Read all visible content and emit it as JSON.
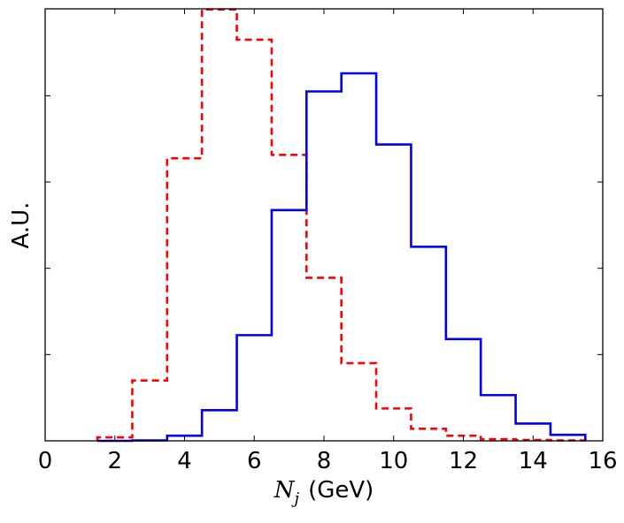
{
  "chart_data": {
    "type": "step",
    "title": "",
    "xlabel": {
      "symbol": "N",
      "subscript": "j",
      "unit": "(GeV)"
    },
    "ylabel": "A.U.",
    "xlim": [
      0,
      16
    ],
    "ylim": [
      0,
      1
    ],
    "xticks": [
      0,
      2,
      4,
      6,
      8,
      10,
      12,
      14,
      16
    ],
    "xtick_labels": [
      "0",
      "2",
      "4",
      "6",
      "8",
      "10",
      "12",
      "14",
      "16"
    ],
    "yticks": [
      0.2,
      0.4,
      0.6,
      0.8
    ],
    "ytick_labels_shown": false,
    "grid": false,
    "legend": "none",
    "bin_edges": [
      1.5,
      2.5,
      3.5,
      4.5,
      5.5,
      6.5,
      7.5,
      8.5,
      9.5,
      10.5,
      11.5,
      12.5,
      13.5,
      14.5,
      15.5
    ],
    "series": [
      {
        "color": "#ff0000",
        "linestyle": "dashed",
        "values": [
          0.008,
          0.14,
          0.655,
          1.0,
          0.93,
          0.663,
          0.378,
          0.18,
          0.075,
          0.028,
          0.012,
          0.004,
          0.002,
          0.001
        ]
      },
      {
        "color": "#0000ee",
        "linestyle": "solid",
        "values": [
          0.0,
          0.001,
          0.012,
          0.071,
          0.245,
          0.535,
          0.81,
          0.852,
          0.687,
          0.45,
          0.236,
          0.106,
          0.04,
          0.014
        ]
      }
    ]
  }
}
